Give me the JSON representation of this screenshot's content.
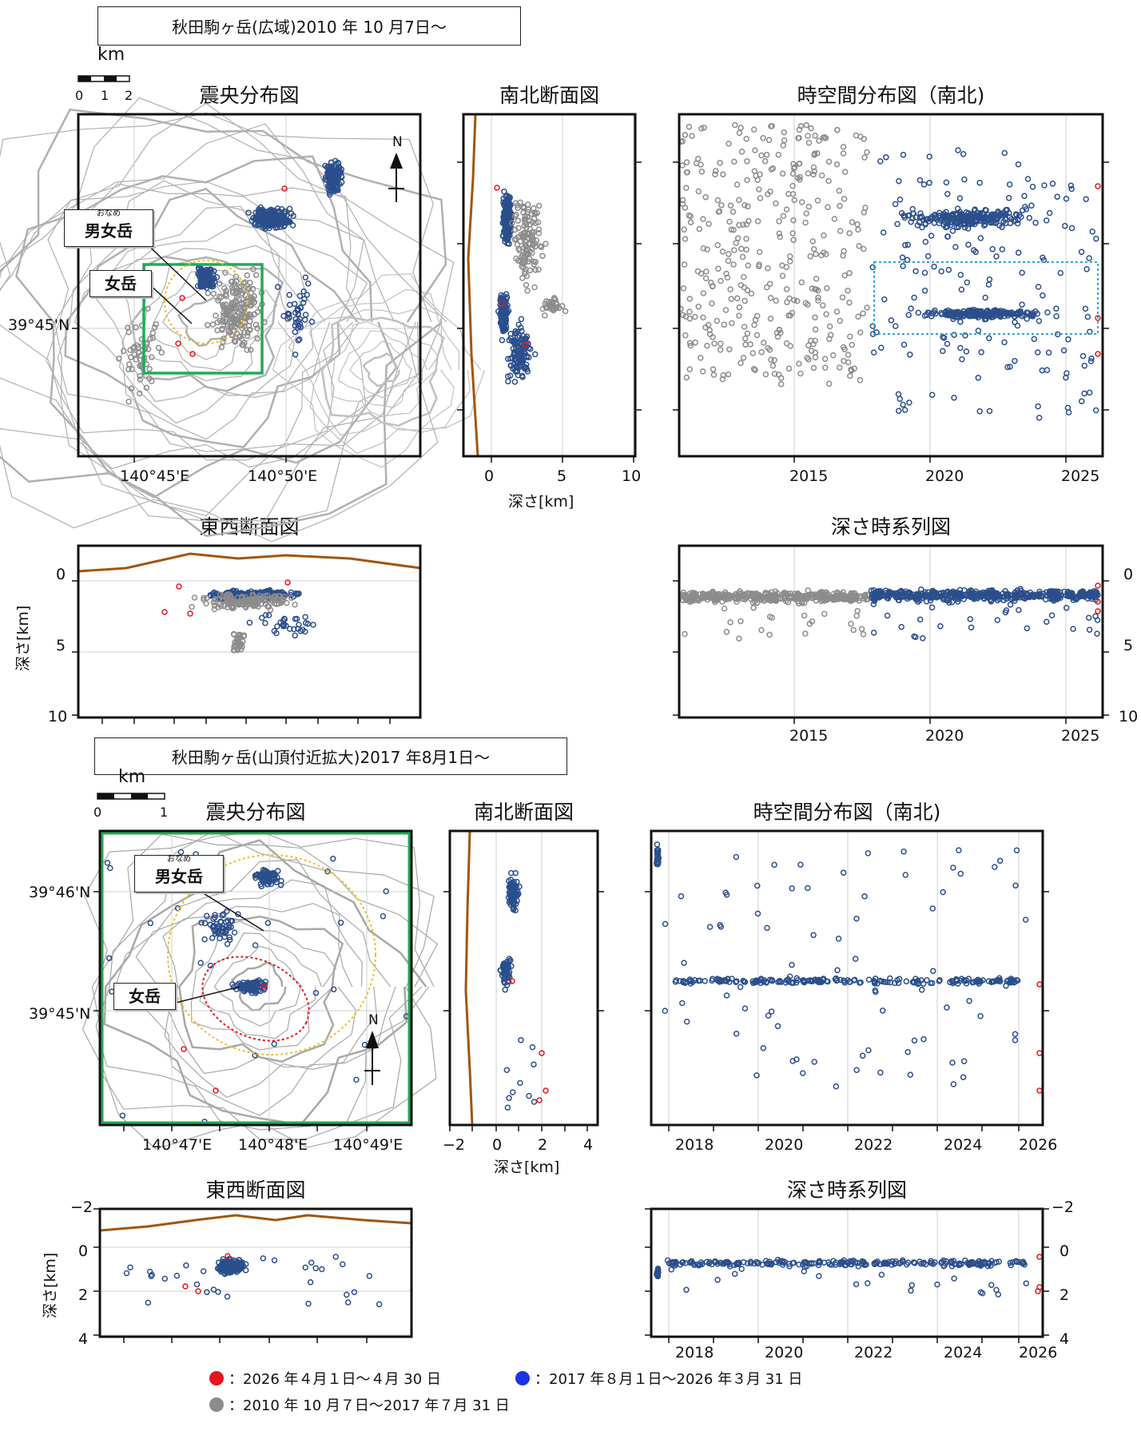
{
  "section1": {
    "title": "秋田駒ヶ岳(広域)2010 年 10 月7日～",
    "scale_unit": "km",
    "scale_ticks": [
      "0",
      "1",
      "2"
    ],
    "epicenter": {
      "title": "震央分布図",
      "lat_label": "39°45'N",
      "lon_labels": [
        "140°45'E",
        "140°50'E"
      ],
      "north_label": "N",
      "callout_onaame": {
        "ruby": "おなめ",
        "label": "男女岳"
      },
      "callout_medake": {
        "label": "女岳"
      }
    },
    "ns_section": {
      "title": "南北断面図",
      "x_ticks": [
        "0",
        "5",
        "10"
      ],
      "xlabel": "深さ[km]"
    },
    "timespace": {
      "title": "時空間分布図（南北)",
      "x_ticks": [
        "2015",
        "2020",
        "2025"
      ]
    },
    "ew_section": {
      "title": "東西断面図",
      "y_ticks": [
        "0",
        "5",
        "10"
      ],
      "ylabel": "深さ[km]"
    },
    "depth_time": {
      "title": "深さ時系列図",
      "y_ticks": [
        "0",
        "5",
        "10"
      ],
      "x_ticks": [
        "2015",
        "2020",
        "2025"
      ]
    }
  },
  "section2": {
    "title": "秋田駒ヶ岳(山頂付近拡大)2017 年8月1日～",
    "scale_unit": "km",
    "scale_ticks": [
      "0",
      "1"
    ],
    "epicenter": {
      "title": "震央分布図",
      "lat_labels": [
        "39°46'N",
        "39°45'N"
      ],
      "lon_labels": [
        "140°47'E",
        "140°48'E",
        "140°49'E"
      ],
      "north_label": "N",
      "callout_onaame": {
        "ruby": "おなめ",
        "label": "男女岳"
      },
      "callout_medake": {
        "label": "女岳"
      }
    },
    "ns_section": {
      "title": "南北断面図",
      "x_ticks": [
        "−2",
        "0",
        "2",
        "4"
      ],
      "xlabel": "深さ[km]"
    },
    "timespace": {
      "title": "時空間分布図（南北)",
      "x_ticks": [
        "2018",
        "2020",
        "2022",
        "2024",
        "2026"
      ]
    },
    "ew_section": {
      "title": "東西断面図",
      "y_ticks": [
        "−2",
        "0",
        "2",
        "4"
      ],
      "ylabel": "深さ[km]"
    },
    "depth_time": {
      "title": "深さ時系列図",
      "y_ticks": [
        "−2",
        "0",
        "2",
        "4"
      ],
      "x_ticks": [
        "2018",
        "2020",
        "2022",
        "2024",
        "2026"
      ]
    }
  },
  "legend": [
    {
      "color": "#e8141c",
      "label": "：2026 年４月１日～４月 30 日"
    },
    {
      "color": "#1a33e6",
      "label": "：2017 年８月１日～2026 年３月 31 日"
    },
    {
      "color": "#8c8c8c",
      "label": "：2010 年 10 月７日～2017 年７月 31 日"
    }
  ],
  "colors": {
    "gray": "#8c8c8c",
    "blue": "#2b4f8c",
    "red": "#e8141c",
    "topo": "#a0560f",
    "green": "#22aa55",
    "yellow": "#f0c020",
    "cyan": "#22aadd"
  },
  "chart_data": [
    {
      "type": "scatter",
      "title": "震央分布図",
      "note": "epicenter distribution, wide area",
      "x_range": [
        140.72,
        140.92
      ],
      "y_range": [
        39.68,
        39.82
      ],
      "series": [
        {
          "name": "2010 年 10 月７日～2017 年７月 31 日",
          "color": "gray"
        },
        {
          "name": "2017 年８月１日～2026 年３月 31 日",
          "color": "blue"
        },
        {
          "name": "2026 年４月１日～４月 30 日",
          "color": "red"
        }
      ]
    },
    {
      "type": "scatter",
      "title": "南北断面図",
      "xlabel": "深さ[km]",
      "xlim": [
        -2,
        10
      ]
    },
    {
      "type": "scatter",
      "title": "時空間分布図（南北)",
      "xlim": [
        2010.8,
        2026.3
      ]
    },
    {
      "type": "scatter",
      "title": "東西断面図",
      "ylabel": "深さ[km]",
      "ylim": [
        10,
        -2
      ]
    },
    {
      "type": "scatter",
      "title": "深さ時系列図",
      "ylim": [
        10,
        -2
      ],
      "xlim": [
        2010.8,
        2026.3
      ]
    },
    {
      "type": "scatter",
      "title": "震央分布図",
      "note": "summit enlarged"
    },
    {
      "type": "scatter",
      "title": "南北断面図",
      "xlabel": "深さ[km]",
      "xlim": [
        -2,
        5
      ]
    },
    {
      "type": "scatter",
      "title": "時空間分布図（南北)",
      "xlim": [
        2017.3,
        2026.3
      ]
    },
    {
      "type": "scatter",
      "title": "東西断面図",
      "ylabel": "深さ[km]",
      "ylim": [
        5,
        -2
      ]
    },
    {
      "type": "scatter",
      "title": "深さ時系列図",
      "ylim": [
        5,
        -2
      ],
      "xlim": [
        2017.3,
        2026.3
      ]
    }
  ]
}
